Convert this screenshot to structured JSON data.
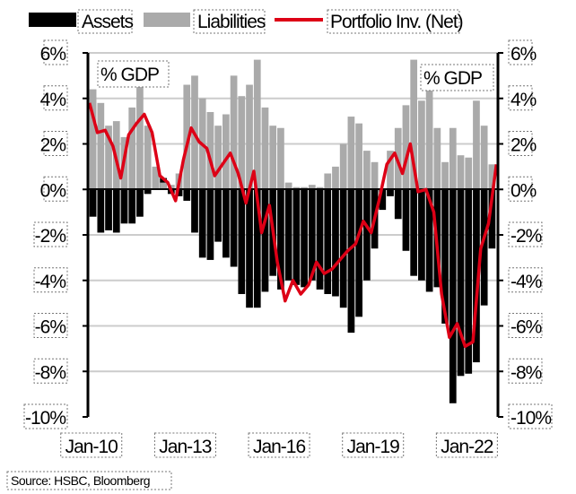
{
  "chart_data": {
    "type": "bar+line",
    "title": "",
    "legend": [
      "Assets",
      "Liabilities",
      "Portfolio Inv. (Net)"
    ],
    "legend_position": "top",
    "annotation_left": "% GDP",
    "annotation_right": "% GDP",
    "ylabel": "% GDP",
    "ylim": [
      -10,
      6
    ],
    "yticks": [
      6,
      4,
      2,
      0,
      -2,
      -4,
      -6,
      -8,
      -10
    ],
    "ytick_labels": [
      "6%",
      "4%",
      "2%",
      "0%",
      "-2%",
      "-4%",
      "-6%",
      "-8%",
      "-10%"
    ],
    "xlim": [
      2009.95,
      2023.05
    ],
    "xticks": [
      2010,
      2013,
      2016,
      2019,
      2022
    ],
    "xtick_labels": [
      "Jan-10",
      "Jan-13",
      "Jan-16",
      "Jan-19",
      "Jan-22"
    ],
    "x_start": 2010,
    "x_step": 0.25,
    "grid": true,
    "series": [
      {
        "name": "Assets",
        "type": "bar",
        "color": "#000000",
        "values": [
          -1.2,
          -1.9,
          -1.8,
          -1.9,
          -1.5,
          -1.5,
          -1.2,
          -0.2,
          0.9,
          0.5,
          -0.2,
          -0.3,
          -0.5,
          -1.9,
          -3.0,
          -3.1,
          -2.3,
          -3.0,
          -3.4,
          -4.6,
          -5.2,
          -5.2,
          -4.5,
          -3.8,
          -4.4,
          -4.0,
          -4.2,
          -4.3,
          -4.0,
          -4.4,
          -4.6,
          -4.7,
          -5.2,
          -6.3,
          -5.6,
          -4.0,
          -2.6,
          -0.9,
          -0.3,
          -1.3,
          -2.7,
          -3.8,
          -4.0,
          -4.5,
          -4.3,
          -5.9,
          -9.4,
          -8.2,
          -8.1,
          -7.6,
          -5.1,
          -2.6
        ]
      },
      {
        "name": "Liabilities",
        "type": "bar",
        "color": "#aaaaaa",
        "values": [
          4.4,
          3.8,
          2.8,
          3.0,
          2.3,
          3.6,
          4.5,
          2.8,
          1.0,
          0.3,
          0.2,
          0.7,
          4.6,
          5.0,
          4.0,
          3.4,
          2.8,
          3.3,
          5.0,
          4.1,
          4.6,
          5.7,
          3.6,
          2.8,
          2.7,
          0.3,
          0.1,
          0.1,
          0.2,
          0.1,
          0.7,
          1.0,
          2.0,
          3.2,
          2.9,
          1.7,
          1.2,
          0.0,
          1.7,
          2.7,
          3.7,
          5.7,
          3.9,
          4.9,
          2.7,
          1.2,
          2.7,
          1.5,
          1.4,
          3.9,
          2.8,
          1.1
        ]
      },
      {
        "name": "Portfolio Inv. (Net)",
        "type": "line",
        "color": "#dd0016",
        "values": [
          3.8,
          2.5,
          2.6,
          1.9,
          0.5,
          2.4,
          2.9,
          3.3,
          2.5,
          0.6,
          0.3,
          -0.5,
          1.3,
          2.7,
          2.1,
          1.8,
          0.6,
          1.1,
          1.6,
          0.7,
          -0.6,
          0.8,
          -1.9,
          -0.7,
          -3.2,
          -4.9,
          -4.0,
          -4.6,
          -4.2,
          -3.2,
          -3.7,
          -3.5,
          -3.1,
          -2.7,
          -2.4,
          -1.4,
          -1.9,
          -0.5,
          1.1,
          1.6,
          0.7,
          2.0,
          -0.1,
          0.0,
          -1.0,
          -4.6,
          -6.5,
          -5.9,
          -6.9,
          -6.7,
          -2.6,
          -1.5,
          1.1
        ]
      }
    ]
  },
  "source": "Source: HSBC, Bloomberg"
}
